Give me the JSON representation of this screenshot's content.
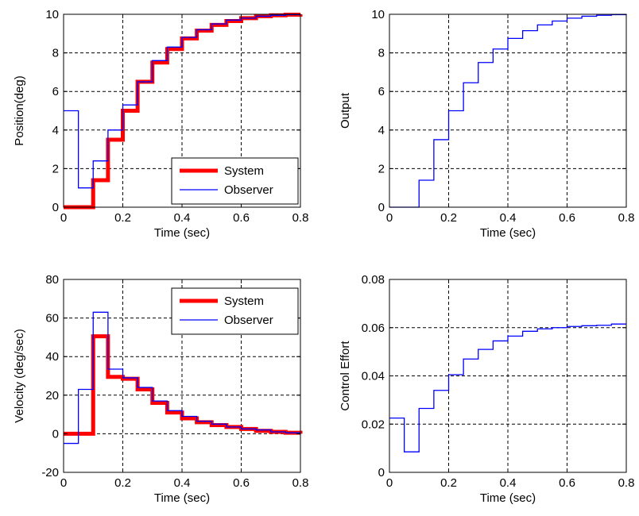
{
  "chart_data": [
    {
      "type": "line",
      "step": true,
      "xlabel": "Time (sec)",
      "ylabel": "Position(deg)",
      "xlim": [
        0,
        0.8
      ],
      "ylim": [
        0,
        10
      ],
      "xticks": [
        "0",
        "0.2",
        "0.4",
        "0.6",
        "0.8"
      ],
      "yticks": [
        "0",
        "2",
        "4",
        "6",
        "8",
        "10"
      ],
      "grid": true,
      "legend": "bottom-right",
      "series": [
        {
          "name": "System",
          "color": "#ff0000",
          "x": [
            0,
            0.05,
            0.1,
            0.15,
            0.2,
            0.25,
            0.3,
            0.35,
            0.4,
            0.45,
            0.5,
            0.55,
            0.6,
            0.65,
            0.7,
            0.75,
            0.8
          ],
          "y": [
            0,
            0,
            1.4,
            3.5,
            5.0,
            6.5,
            7.5,
            8.2,
            8.75,
            9.15,
            9.45,
            9.65,
            9.8,
            9.9,
            9.95,
            9.98,
            10.0
          ]
        },
        {
          "name": "Observer",
          "color": "#0000ff",
          "x": [
            0,
            0.05,
            0.1,
            0.15,
            0.2,
            0.25,
            0.3,
            0.35,
            0.4,
            0.45,
            0.5,
            0.55,
            0.6,
            0.65,
            0.7,
            0.75,
            0.8
          ],
          "y": [
            5.0,
            1.0,
            2.4,
            4.0,
            5.3,
            6.5,
            7.6,
            8.3,
            8.8,
            9.2,
            9.5,
            9.7,
            9.8,
            9.9,
            9.95,
            9.98,
            10.0
          ]
        }
      ]
    },
    {
      "type": "line",
      "step": true,
      "xlabel": "Time (sec)",
      "ylabel": "Output",
      "xlim": [
        0,
        0.8
      ],
      "ylim": [
        0,
        10
      ],
      "xticks": [
        "0",
        "0.2",
        "0.4",
        "0.6",
        "0.8"
      ],
      "yticks": [
        "0",
        "2",
        "4",
        "6",
        "8",
        "10"
      ],
      "grid": true,
      "series": [
        {
          "color": "#0000ff",
          "x": [
            0,
            0.05,
            0.1,
            0.15,
            0.2,
            0.25,
            0.3,
            0.35,
            0.4,
            0.45,
            0.5,
            0.55,
            0.6,
            0.65,
            0.7,
            0.75,
            0.8
          ],
          "y": [
            0,
            0,
            1.4,
            3.5,
            5.0,
            6.45,
            7.5,
            8.2,
            8.75,
            9.15,
            9.45,
            9.65,
            9.8,
            9.9,
            9.95,
            9.98,
            10.0
          ]
        }
      ]
    },
    {
      "type": "line",
      "step": true,
      "xlabel": "Time (sec)",
      "ylabel": "Velocity (deg/sec)",
      "xlim": [
        0,
        0.8
      ],
      "ylim": [
        -20,
        80
      ],
      "xticks": [
        "0",
        "0.2",
        "0.4",
        "0.6",
        "0.8"
      ],
      "yticks": [
        "-20",
        "0",
        "20",
        "40",
        "60",
        "80"
      ],
      "grid": true,
      "legend": "top-right",
      "series": [
        {
          "name": "System",
          "color": "#ff0000",
          "x": [
            0,
            0.05,
            0.1,
            0.15,
            0.2,
            0.25,
            0.3,
            0.35,
            0.4,
            0.45,
            0.5,
            0.55,
            0.6,
            0.65,
            0.7,
            0.75,
            0.8
          ],
          "y": [
            0,
            0,
            50.5,
            29.5,
            28.5,
            23.0,
            16.0,
            11.0,
            8.0,
            6.0,
            4.5,
            3.5,
            2.5,
            1.5,
            1.0,
            0.5,
            0
          ]
        },
        {
          "name": "Observer",
          "color": "#0000ff",
          "x": [
            0,
            0.05,
            0.1,
            0.15,
            0.2,
            0.25,
            0.3,
            0.35,
            0.4,
            0.45,
            0.5,
            0.55,
            0.6,
            0.65,
            0.7,
            0.75,
            0.8
          ],
          "y": [
            -5.0,
            23.0,
            63.0,
            33.5,
            29.0,
            24.0,
            17.0,
            12.0,
            9.0,
            6.5,
            5.0,
            3.5,
            2.5,
            2.0,
            1.0,
            0.5,
            0
          ]
        }
      ]
    },
    {
      "type": "line",
      "step": true,
      "xlabel": "Time (sec)",
      "ylabel": "Control Effort",
      "xlim": [
        0,
        0.8
      ],
      "ylim": [
        0,
        0.08
      ],
      "xticks": [
        "0",
        "0.2",
        "0.4",
        "0.6",
        "0.8"
      ],
      "yticks": [
        "0",
        "0.02",
        "0.04",
        "0.06",
        "0.08"
      ],
      "grid": true,
      "series": [
        {
          "color": "#0000ff",
          "x": [
            0,
            0.05,
            0.1,
            0.15,
            0.2,
            0.25,
            0.3,
            0.35,
            0.4,
            0.45,
            0.5,
            0.55,
            0.6,
            0.65,
            0.7,
            0.75,
            0.8
          ],
          "y": [
            0.0225,
            0.0085,
            0.0265,
            0.034,
            0.0405,
            0.047,
            0.051,
            0.0545,
            0.0565,
            0.0585,
            0.0595,
            0.06,
            0.0605,
            0.0608,
            0.061,
            0.0615,
            0.0615
          ]
        }
      ]
    }
  ]
}
